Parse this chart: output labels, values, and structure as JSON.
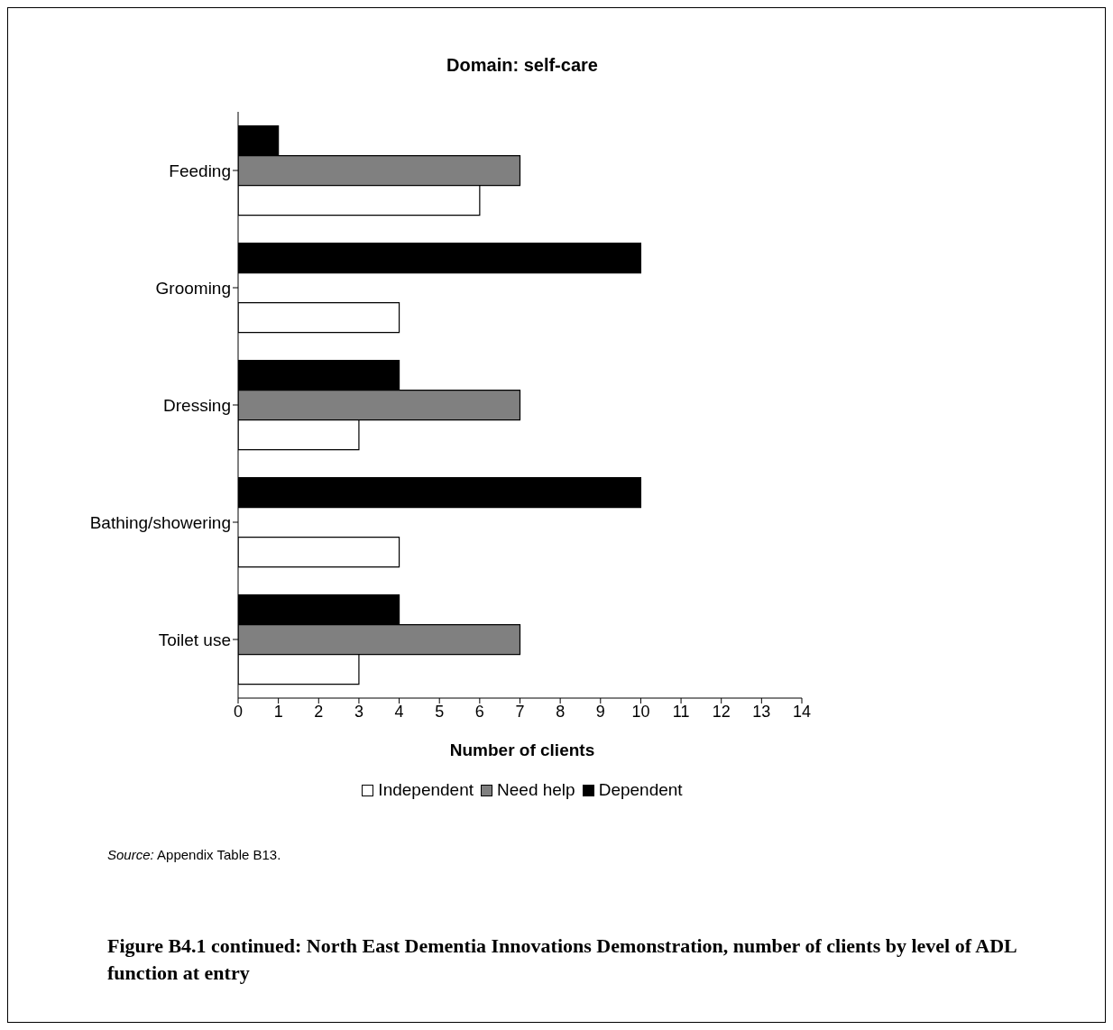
{
  "chart_data": {
    "type": "bar",
    "orientation": "horizontal",
    "title": "Domain: self-care",
    "xlabel": "Number of clients",
    "categories": [
      "Feeding",
      "Grooming",
      "Dressing",
      "Bathing/showering",
      "Toilet use"
    ],
    "series": [
      {
        "name": "Independent",
        "color": "#ffffff",
        "values": [
          6,
          4,
          3,
          4,
          3
        ]
      },
      {
        "name": "Need help",
        "color": "#808080",
        "values": [
          7,
          0,
          7,
          0,
          7
        ]
      },
      {
        "name": "Dependent",
        "color": "#000000",
        "values": [
          1,
          10,
          4,
          10,
          4
        ]
      }
    ],
    "xlim": [
      0,
      14
    ],
    "xticks": [
      0,
      1,
      2,
      3,
      4,
      5,
      6,
      7,
      8,
      9,
      10,
      11,
      12,
      13,
      14
    ],
    "grid": false,
    "legend": "bottom",
    "annotations": [
      "Source: Appendix Table B13.",
      "Figure B4.1 continued: North East Dementia Innovations Demonstration, number of clients by level of ADL function at entry"
    ]
  }
}
